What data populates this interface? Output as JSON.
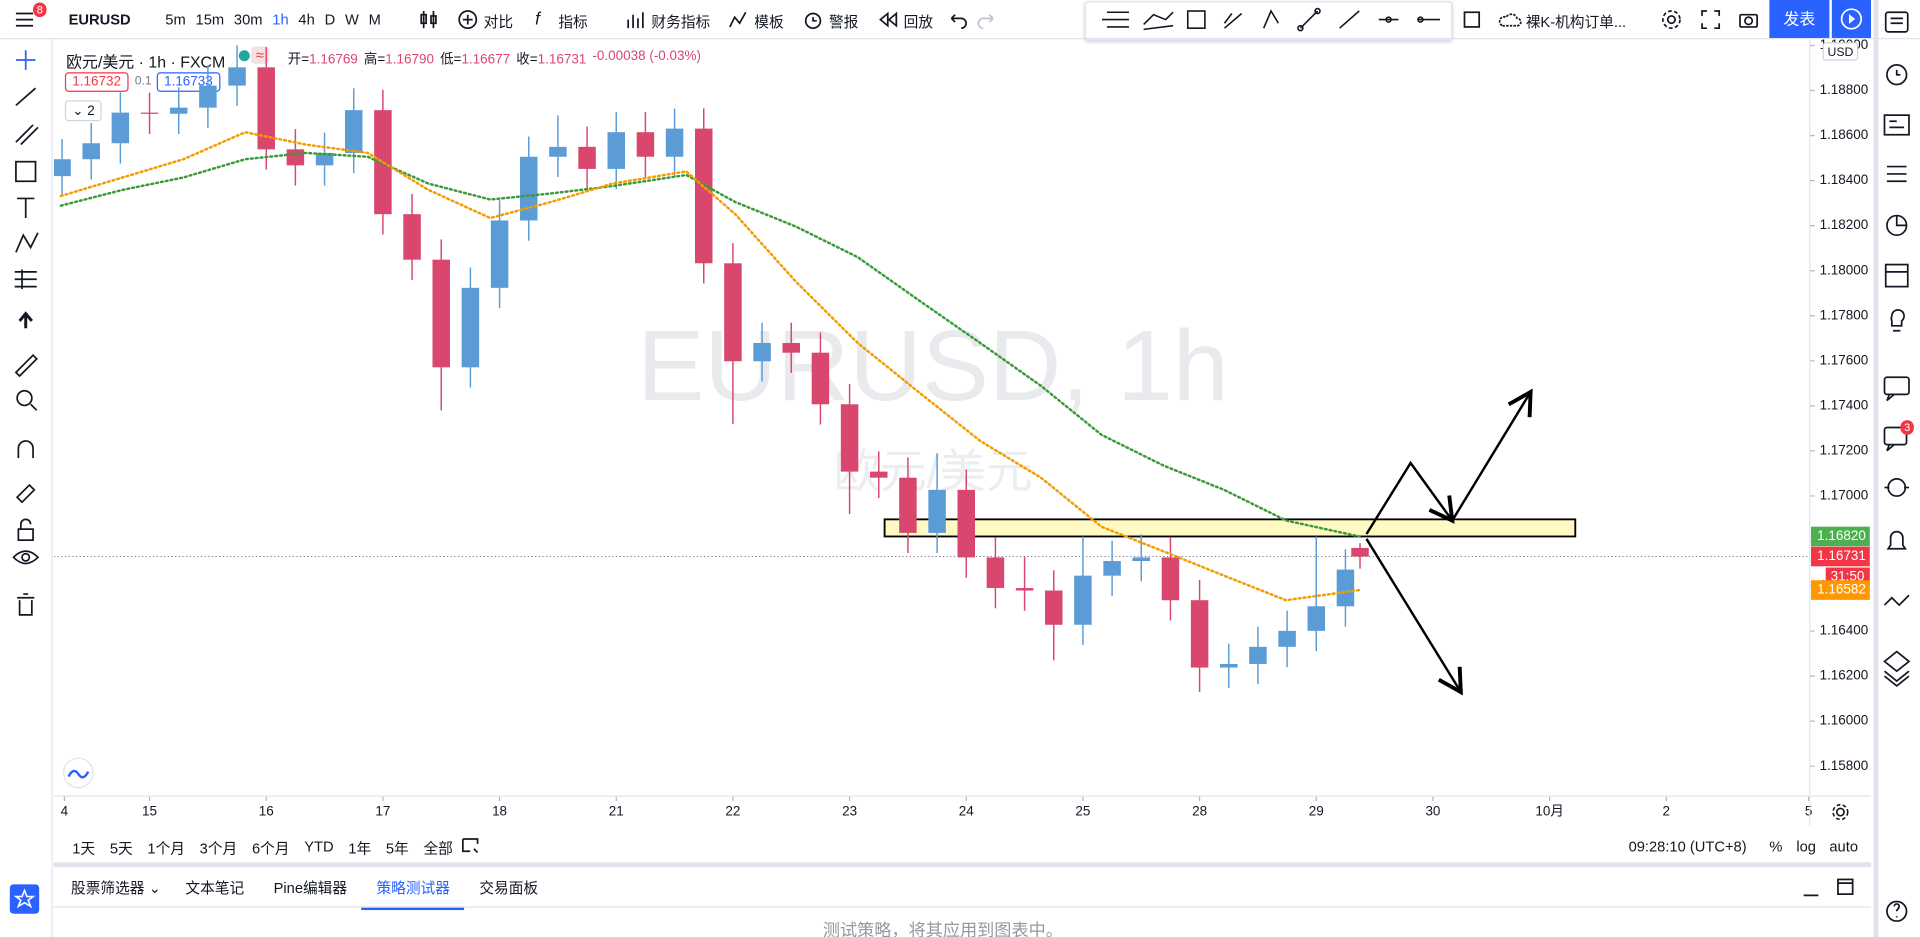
{
  "toolbar": {
    "badge": "8",
    "symbol": "EURUSD",
    "intervals": [
      "5m",
      "15m",
      "30m",
      "1h",
      "4h",
      "D",
      "W",
      "M"
    ],
    "compare": "对比",
    "indicators": "指标",
    "financials": "财务指标",
    "templates": "模板",
    "alerts": "警报",
    "replay": "回放",
    "layout": "裸K-机构订单...",
    "publish": "发表"
  },
  "legend": {
    "symbol": "欧元/美元 · 1h · FXCM",
    "badge": "≈",
    "ohlc": [
      {
        "label": "开=",
        "value": "1.16769"
      },
      {
        "label": "高=",
        "value": "1.16790"
      },
      {
        "label": "低=",
        "value": "1.16677"
      },
      {
        "label": "收=",
        "value": "1.16731"
      }
    ],
    "change": "-0.00038 (-0.03%)",
    "bid": "1.16732",
    "spread": "0.1",
    "ask": "1.16733",
    "indicator_count": "2"
  },
  "watermark": {
    "title": "EURUSD, 1h",
    "subtitle": "欧元/美元"
  },
  "chart_data": {
    "type": "candlestick",
    "currency": "USD",
    "grid": false,
    "xlim": [
      0.18,
      15.23
    ],
    "xticks": [
      {
        "value": 0.27,
        "label": "4"
      },
      {
        "value": 1,
        "label": "15"
      },
      {
        "value": 2,
        "label": "16"
      },
      {
        "value": 3,
        "label": "17"
      },
      {
        "value": 4,
        "label": "18"
      },
      {
        "value": 5,
        "label": "21"
      },
      {
        "value": 6,
        "label": "22"
      },
      {
        "value": 7,
        "label": "23"
      },
      {
        "value": 8,
        "label": "24"
      },
      {
        "value": 9,
        "label": "25"
      },
      {
        "value": 10,
        "label": "28"
      },
      {
        "value": 11,
        "label": "29"
      },
      {
        "value": 12,
        "label": "30"
      },
      {
        "value": 13,
        "label": "10月"
      },
      {
        "value": 14,
        "label": "2"
      },
      {
        "value": 15.22,
        "label": "5"
      }
    ],
    "ylim": [
      1.15667,
      1.19028
    ],
    "yticks": [
      {
        "value": 1.158,
        "label": "1.15800"
      },
      {
        "value": 1.16,
        "label": "1.16000"
      },
      {
        "value": 1.162,
        "label": "1.16200"
      },
      {
        "value": 1.164,
        "label": "1.16400"
      },
      {
        "value": 1.166,
        "label": "1.16600"
      },
      {
        "value": 1.168,
        "label": "1.16800"
      },
      {
        "value": 1.17,
        "label": "1.17000"
      },
      {
        "value": 1.172,
        "label": "1.17200"
      },
      {
        "value": 1.174,
        "label": "1.17400"
      },
      {
        "value": 1.176,
        "label": "1.17600"
      },
      {
        "value": 1.178,
        "label": "1.17800"
      },
      {
        "value": 1.18,
        "label": "1.18000"
      },
      {
        "value": 1.182,
        "label": "1.18200"
      },
      {
        "value": 1.184,
        "label": "1.18400"
      },
      {
        "value": 1.186,
        "label": "1.18600"
      },
      {
        "value": 1.188,
        "label": "1.18800"
      },
      {
        "value": 1.19,
        "label": "1.19000"
      }
    ],
    "up_color": "#5b9cd6",
    "down_color": "#d9476f",
    "candles": {
      "x": [
        0.25,
        0.5,
        0.75,
        1,
        1.25,
        1.5,
        1.75,
        2,
        2.25,
        2.5,
        2.75,
        3,
        3.25,
        3.5,
        3.75,
        4,
        4.25,
        4.5,
        4.75,
        5,
        5.25,
        5.5,
        5.75,
        6,
        6.25,
        6.5,
        6.75,
        7,
        7.25,
        7.5,
        7.75,
        8,
        8.25,
        8.5,
        8.75,
        9,
        9.25,
        9.5,
        9.75,
        10,
        10.25,
        10.5,
        10.75,
        11,
        11.25,
        11.375
      ],
      "open": [
        1.1842,
        1.18495,
        1.18566,
        1.18702,
        1.18697,
        1.18724,
        1.18822,
        1.18903,
        1.18539,
        1.18468,
        1.18523,
        1.18713,
        1.18251,
        1.18049,
        1.17571,
        1.17924,
        1.18223,
        1.18506,
        1.1855,
        1.18452,
        1.18615,
        1.18506,
        1.18631,
        1.18033,
        1.17598,
        1.17679,
        1.17636,
        1.17407,
        1.17108,
        1.17081,
        1.16836,
        1.17027,
        1.16727,
        1.16591,
        1.1658,
        1.16428,
        1.16646,
        1.16711,
        1.16727,
        1.16537,
        1.16238,
        1.16254,
        1.1633,
        1.16401,
        1.1651,
        1.16769
      ],
      "high": [
        1.18585,
        1.18656,
        1.18792,
        1.1879,
        1.18814,
        1.18912,
        1.19,
        1.18993,
        1.18629,
        1.18613,
        1.1881,
        1.18803,
        1.18341,
        1.18139,
        1.18014,
        1.18313,
        1.18596,
        1.1869,
        1.1864,
        1.18705,
        1.18705,
        1.1872,
        1.18721,
        1.18123,
        1.17769,
        1.17769,
        1.17726,
        1.17497,
        1.17198,
        1.17171,
        1.1719,
        1.17117,
        1.16817,
        1.1673,
        1.1667,
        1.1682,
        1.16801,
        1.1683,
        1.16817,
        1.16627,
        1.16344,
        1.1642,
        1.16491,
        1.1682,
        1.16763,
        1.1679
      ],
      "low": [
        1.1833,
        1.18405,
        1.18476,
        1.18607,
        1.18607,
        1.18634,
        1.18732,
        1.18449,
        1.18378,
        1.18378,
        1.18433,
        1.18161,
        1.17959,
        1.1738,
        1.17481,
        1.17834,
        1.18133,
        1.18416,
        1.18362,
        1.18362,
        1.18416,
        1.18416,
        1.17943,
        1.1732,
        1.17508,
        1.17546,
        1.17317,
        1.1692,
        1.16991,
        1.16746,
        1.16746,
        1.16637,
        1.16501,
        1.1649,
        1.1627,
        1.16338,
        1.16556,
        1.16621,
        1.16447,
        1.1613,
        1.16148,
        1.16164,
        1.1624,
        1.16311,
        1.1642,
        1.16677
      ],
      "close": [
        1.18495,
        1.18566,
        1.18702,
        1.18697,
        1.18724,
        1.18822,
        1.18903,
        1.18539,
        1.18468,
        1.18523,
        1.18713,
        1.18251,
        1.18049,
        1.17571,
        1.17924,
        1.18223,
        1.18506,
        1.1855,
        1.18452,
        1.18615,
        1.18506,
        1.18631,
        1.18033,
        1.17598,
        1.17679,
        1.17636,
        1.17407,
        1.17108,
        1.17081,
        1.16836,
        1.17027,
        1.16727,
        1.16591,
        1.1658,
        1.16428,
        1.16646,
        1.16711,
        1.16727,
        1.16537,
        1.16238,
        1.16254,
        1.1633,
        1.16401,
        1.1651,
        1.16673,
        1.16731
      ]
    },
    "ma_lines": [
      {
        "color": "#3a9a3a",
        "x": [
          0.24,
          0.77,
          1.29,
          1.82,
          2.34,
          2.87,
          3.39,
          3.92,
          4.44,
          4.97,
          5.6,
          6.02,
          6.54,
          7.07,
          7.59,
          8.12,
          8.64,
          9.16,
          9.69,
          10.21,
          10.74,
          11.37
        ],
        "values": [
          1.18289,
          1.18359,
          1.18414,
          1.18495,
          1.18523,
          1.18506,
          1.18387,
          1.18316,
          1.18343,
          1.18376,
          1.18425,
          1.18305,
          1.18196,
          1.1806,
          1.1787,
          1.17679,
          1.17489,
          1.17271,
          1.17135,
          1.17027,
          1.16891,
          1.1682
        ]
      },
      {
        "color": "#f29c00",
        "x": [
          0.24,
          0.77,
          1.29,
          1.82,
          2.34,
          2.87,
          3.39,
          3.92,
          4.44,
          4.97,
          5.6,
          6.02,
          6.54,
          7.07,
          7.59,
          8.12,
          8.64,
          9.16,
          9.69,
          10.21,
          10.74,
          11.37
        ],
        "values": [
          1.18332,
          1.18414,
          1.18495,
          1.18615,
          1.1856,
          1.18523,
          1.18359,
          1.18234,
          1.18305,
          1.18387,
          1.18441,
          1.18251,
          1.17951,
          1.17679,
          1.17462,
          1.17244,
          1.17081,
          1.16863,
          1.16754,
          1.16646,
          1.16537,
          1.16582
        ]
      }
    ],
    "zone": {
      "x": [
        7.3,
        13.22
      ],
      "y": [
        1.1682,
        1.16896
      ],
      "color": "#fff9c4"
    },
    "price_labels": [
      {
        "text": "1.16820",
        "value": 1.1682,
        "color": "#4caf50"
      },
      {
        "text": "1.16731",
        "value": 1.16731,
        "color": "#f23645",
        "countdown": "31:50"
      },
      {
        "text": "1.16582",
        "value": 1.16582,
        "color": "#ff9800"
      }
    ]
  },
  "ranges": [
    "1天",
    "5天",
    "1个月",
    "3个月",
    "6个月",
    "YTD",
    "1年",
    "5年",
    "全部"
  ],
  "clock": "09:28:10 (UTC+8)",
  "scale_options": [
    "%",
    "log",
    "auto"
  ],
  "tabs": [
    "股票筛选器",
    "文本笔记",
    "Pine编辑器",
    "策略测试器",
    "交易面板"
  ],
  "alerts_badge": "3",
  "strategy_message": "测试策略，将其应用到图表中。"
}
